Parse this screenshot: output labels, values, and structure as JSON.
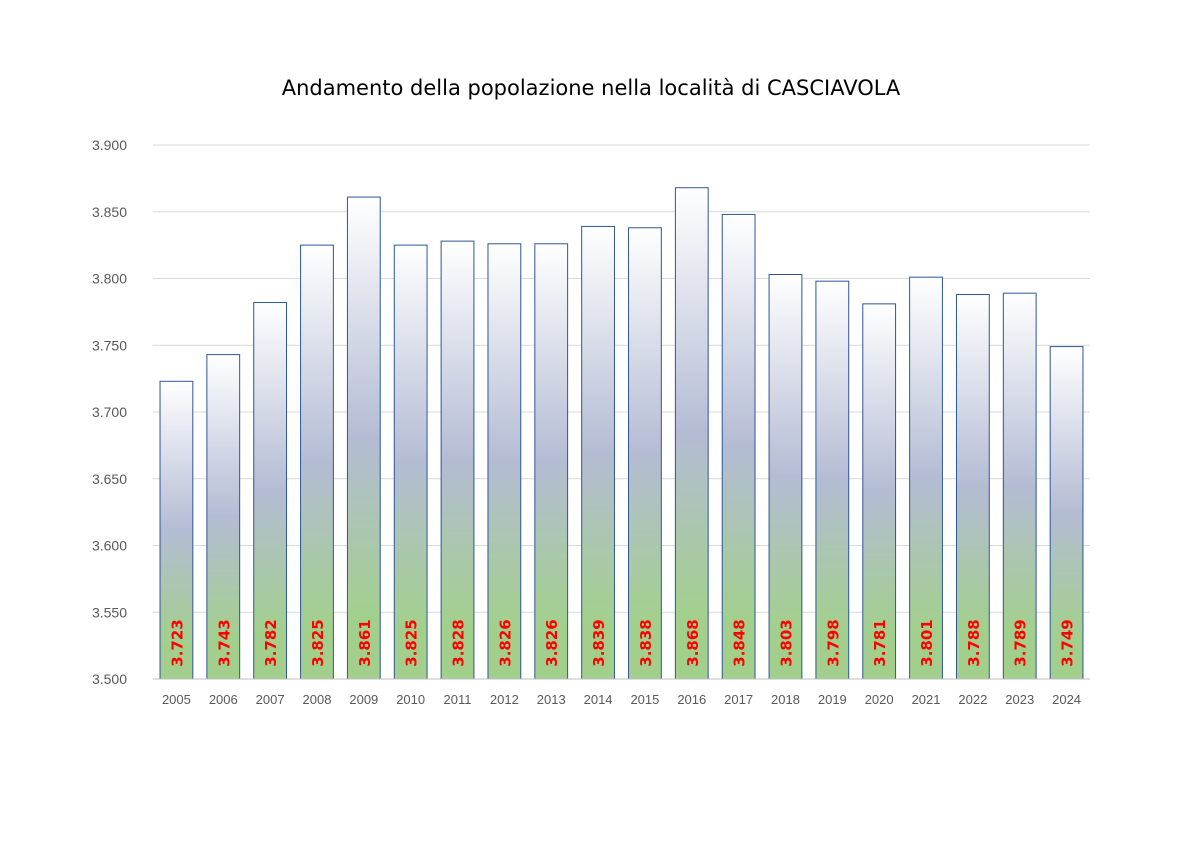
{
  "chart_data": {
    "type": "bar",
    "title": "Andamento della popolazione nella località di CASCIAVOLA",
    "xlabel": "",
    "ylabel": "",
    "categories": [
      "2005",
      "2006",
      "2007",
      "2008",
      "2009",
      "2010",
      "2011",
      "2012",
      "2013",
      "2014",
      "2015",
      "2016",
      "2017",
      "2018",
      "2019",
      "2020",
      "2021",
      "2022",
      "2023",
      "2024"
    ],
    "values": [
      3723,
      3743,
      3782,
      3825,
      3861,
      3825,
      3828,
      3826,
      3826,
      3839,
      3838,
      3868,
      3848,
      3803,
      3798,
      3781,
      3801,
      3788,
      3789,
      3749
    ],
    "data_labels": [
      "3.723",
      "3.743",
      "3.782",
      "3.825",
      "3.861",
      "3.825",
      "3.828",
      "3.826",
      "3.826",
      "3.839",
      "3.838",
      "3.868",
      "3.848",
      "3.803",
      "3.798",
      "3.781",
      "3.801",
      "3.788",
      "3.789",
      "3.749"
    ],
    "ylim": [
      3500,
      3900
    ],
    "yticks": [
      3500,
      3550,
      3600,
      3650,
      3700,
      3750,
      3800,
      3850,
      3900
    ],
    "ytick_labels": [
      "3.500",
      "3.550",
      "3.600",
      "3.650",
      "3.700",
      "3.750",
      "3.800",
      "3.850",
      "3.900"
    ],
    "grid": true,
    "legend": "none",
    "colors": {
      "bar_top": "#ffffff",
      "bar_mid": "#b4bcd4",
      "bar_bottom": "#a2d08c",
      "bar_border": "#2f5597",
      "data_label": "#ff0000",
      "grid": "#d9d9d9",
      "tick_text": "#595959"
    }
  }
}
